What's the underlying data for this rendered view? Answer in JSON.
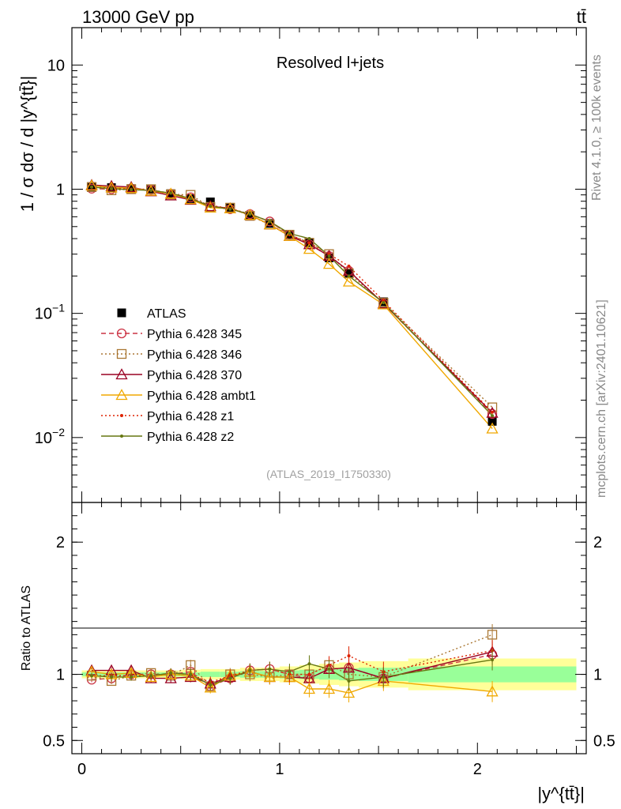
{
  "header": {
    "energy_label": "13000 GeV pp",
    "process_label": "tt̄"
  },
  "side_labels": {
    "rivet": "Rivet 4.1.0, ≥ 100k events",
    "mcplots": "mcplots.cern.ch [arXiv:2401.10621]"
  },
  "chart_data": [
    {
      "panel": "main",
      "type": "scatter",
      "yscale": "log",
      "title": "Resolved l+jets",
      "analysis_label": "(ATLAS_2019_I1750330)",
      "xlabel": "|y^{tt̄}|",
      "ylabel": "1 / σ dσ / d |y^{tt̄}|",
      "xlim": [
        -0.05,
        2.55
      ],
      "ylim": [
        0.003,
        20
      ],
      "y_ticks": [
        {
          "value": 0.01,
          "mant": "10",
          "exp": "−2"
        },
        {
          "value": 0.1,
          "mant": "10",
          "exp": "−1"
        },
        {
          "value": 1,
          "mant": "1",
          "exp": ""
        },
        {
          "value": 10,
          "mant": "10",
          "exp": ""
        }
      ],
      "x": [
        0.05,
        0.15,
        0.25,
        0.35,
        0.45,
        0.55,
        0.65,
        0.75,
        0.85,
        0.95,
        1.05,
        1.15,
        1.25,
        1.35,
        1.525,
        2.075
      ],
      "series": [
        {
          "name": "ATLAS",
          "color": "#000000",
          "marker": "square-filled",
          "line": "none",
          "values": [
            1.05,
            1.03,
            1.01,
            0.99,
            0.92,
            0.84,
            0.79,
            0.71,
            0.61,
            0.53,
            0.43,
            0.37,
            0.28,
            0.21,
            0.124,
            0.0135
          ]
        },
        {
          "name": "Pythia 6.428 345",
          "color": "#cc3344",
          "marker": "circle-open",
          "line": "dashed",
          "values": [
            1.01,
            1.0,
            1.01,
            0.99,
            0.92,
            0.86,
            0.72,
            0.69,
            0.63,
            0.55,
            0.43,
            0.36,
            0.29,
            0.22,
            0.12,
            0.0155
          ]
        },
        {
          "name": "Pythia 6.428 346",
          "color": "#aa7733",
          "marker": "square-open",
          "line": "dotted",
          "values": [
            1.04,
            0.98,
            1.0,
            1.0,
            0.91,
            0.9,
            0.72,
            0.71,
            0.61,
            0.52,
            0.43,
            0.37,
            0.3,
            0.21,
            0.122,
            0.0175
          ]
        },
        {
          "name": "Pythia 6.428 370",
          "color": "#990022",
          "marker": "triangle-open",
          "line": "solid",
          "values": [
            1.08,
            1.06,
            1.04,
            0.96,
            0.89,
            0.82,
            0.73,
            0.7,
            0.62,
            0.52,
            0.42,
            0.36,
            0.29,
            0.22,
            0.12,
            0.0158
          ]
        },
        {
          "name": "Pythia 6.428 ambt1",
          "color": "#f0a800",
          "marker": "triangle-open",
          "line": "solid",
          "values": [
            1.07,
            1.03,
            1.02,
            0.97,
            0.92,
            0.83,
            0.71,
            0.7,
            0.62,
            0.52,
            0.42,
            0.33,
            0.25,
            0.18,
            0.118,
            0.0118
          ]
        },
        {
          "name": "Pythia 6.428 z1",
          "color": "#dd2200",
          "marker": "dot",
          "line": "dotted",
          "values": [
            1.04,
            1.02,
            1.0,
            0.98,
            0.93,
            0.84,
            0.74,
            0.7,
            0.63,
            0.55,
            0.43,
            0.37,
            0.3,
            0.24,
            0.126,
            0.016
          ]
        },
        {
          "name": "Pythia 6.428 z2",
          "color": "#667711",
          "marker": "dot",
          "line": "solid",
          "values": [
            1.04,
            1.01,
            0.99,
            0.98,
            0.93,
            0.84,
            0.73,
            0.69,
            0.63,
            0.55,
            0.44,
            0.4,
            0.29,
            0.2,
            0.122,
            0.015
          ]
        }
      ]
    },
    {
      "panel": "ratio",
      "type": "scatter",
      "ylabel": "Ratio to ATLAS",
      "xlim": [
        -0.05,
        2.55
      ],
      "ylim": [
        0.4,
        2.3
      ],
      "y_ticks": [
        0.5,
        1,
        2
      ],
      "x_ticks": [
        0,
        1,
        2
      ],
      "x_edges": [
        0.0,
        0.1,
        0.2,
        0.3,
        0.4,
        0.5,
        0.6,
        0.7,
        0.8,
        0.9,
        1.0,
        1.1,
        1.2,
        1.3,
        1.4,
        1.65,
        2.5
      ],
      "band_stat": [
        0.015,
        0.015,
        0.015,
        0.015,
        0.015,
        0.015,
        0.02,
        0.02,
        0.025,
        0.025,
        0.03,
        0.035,
        0.04,
        0.045,
        0.05,
        0.06
      ],
      "band_total": [
        0.03,
        0.03,
        0.03,
        0.03,
        0.03,
        0.035,
        0.04,
        0.04,
        0.05,
        0.05,
        0.06,
        0.07,
        0.08,
        0.09,
        0.1,
        0.12
      ],
      "band_colors": {
        "stat": "#99ff99",
        "total": "#ffff99"
      },
      "series": [
        {
          "name": "Pythia 6.428 345",
          "values": [
            0.96,
            0.97,
            1.0,
            1.0,
            1.0,
            1.02,
            0.91,
            0.97,
            1.03,
            1.04,
            1.0,
            0.97,
            1.04,
            1.05,
            0.97,
            1.15
          ]
        },
        {
          "name": "Pythia 6.428 346",
          "values": [
            0.99,
            0.95,
            0.99,
            1.01,
            0.99,
            1.07,
            0.91,
            1.0,
            1.0,
            0.98,
            1.0,
            1.0,
            1.07,
            1.0,
            0.98,
            1.3
          ]
        },
        {
          "name": "Pythia 6.428 370",
          "values": [
            1.03,
            1.03,
            1.03,
            0.97,
            0.97,
            0.98,
            0.93,
            0.98,
            1.02,
            0.98,
            0.98,
            0.97,
            1.04,
            1.05,
            0.97,
            1.17
          ]
        },
        {
          "name": "Pythia 6.428 ambt1",
          "values": [
            1.02,
            1.0,
            1.01,
            0.98,
            1.0,
            0.99,
            0.9,
            0.99,
            1.02,
            0.98,
            0.98,
            0.89,
            0.89,
            0.86,
            0.95,
            0.87
          ]
        },
        {
          "name": "Pythia 6.428 z1",
          "values": [
            0.99,
            0.99,
            0.99,
            0.99,
            1.01,
            1.0,
            0.94,
            0.99,
            1.03,
            1.04,
            1.0,
            1.0,
            1.07,
            1.14,
            1.02,
            1.18
          ]
        },
        {
          "name": "Pythia 6.428 z2",
          "values": [
            0.99,
            0.98,
            0.98,
            0.99,
            1.01,
            1.0,
            0.92,
            0.97,
            1.03,
            1.04,
            1.02,
            1.08,
            1.04,
            0.95,
            0.98,
            1.11
          ]
        }
      ]
    }
  ]
}
